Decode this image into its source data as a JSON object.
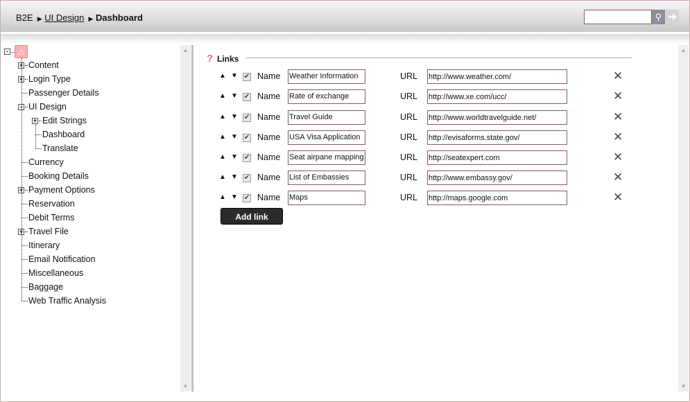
{
  "breadcrumb": {
    "root": "B2E",
    "parent": "UI Design",
    "current": "Dashboard"
  },
  "search": {
    "value": "",
    "search_icon": "magnifier-icon",
    "go_icon": "arrow-right-icon"
  },
  "tree": [
    {
      "label": "Content",
      "level": 1,
      "expander": "+"
    },
    {
      "label": "Login Type",
      "level": 1,
      "expander": "+"
    },
    {
      "label": "Passenger Details",
      "level": 1,
      "expander": ""
    },
    {
      "label": "UI Design",
      "level": 1,
      "expander": "-"
    },
    {
      "label": "Edit Strings",
      "level": 2,
      "expander": "+"
    },
    {
      "label": "Dashboard",
      "level": 2,
      "expander": ""
    },
    {
      "label": "Translate",
      "level": 2,
      "expander": ""
    },
    {
      "label": "Currency",
      "level": 1,
      "expander": ""
    },
    {
      "label": "Booking Details",
      "level": 1,
      "expander": ""
    },
    {
      "label": "Payment Options",
      "level": 1,
      "expander": "+"
    },
    {
      "label": "Reservation",
      "level": 1,
      "expander": ""
    },
    {
      "label": "Debit Terms",
      "level": 1,
      "expander": ""
    },
    {
      "label": "Travel File",
      "level": 1,
      "expander": "+"
    },
    {
      "label": "Itinerary",
      "level": 1,
      "expander": ""
    },
    {
      "label": "Email Notification",
      "level": 1,
      "expander": ""
    },
    {
      "label": "Miscellaneous",
      "level": 1,
      "expander": ""
    },
    {
      "label": "Baggage",
      "level": 1,
      "expander": ""
    },
    {
      "label": "Web Traffic Analysis",
      "level": 1,
      "expander": ""
    }
  ],
  "links": {
    "title": "Links",
    "name_label": "Name",
    "url_label": "URL",
    "add_label": "Add link",
    "rows": [
      {
        "name": "Weather Information",
        "url": "http://www.weather.com/",
        "checked": true
      },
      {
        "name": "Rate of exchange",
        "url": "http://www.xe.com/ucc/",
        "checked": true
      },
      {
        "name": "Travel Guide",
        "url": "http://www.worldtravelguide.net/",
        "checked": true
      },
      {
        "name": "USA Visa Application",
        "url": "http://evisaforms.state.gov/",
        "checked": true
      },
      {
        "name": "Seat airpane mapping",
        "url": "http://seatexpert.com",
        "checked": true
      },
      {
        "name": "List of Embassies",
        "url": "http://www.embassy.gov/",
        "checked": true
      },
      {
        "name": "Maps",
        "url": "http://maps.google.com",
        "checked": true
      }
    ]
  }
}
